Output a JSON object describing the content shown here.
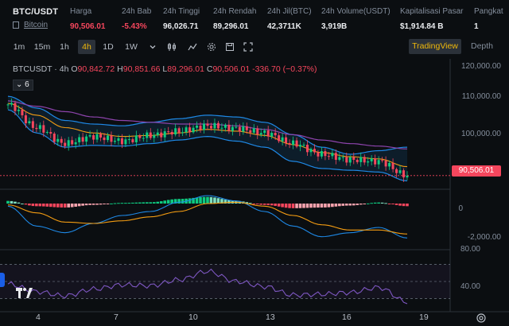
{
  "header": {
    "pair_symbol": "BTC/USDT",
    "pair_name": "Bitcoin",
    "stats": [
      {
        "label": "Harga",
        "value": "90,506.01",
        "color": "#f6465d"
      },
      {
        "label": "24h Bab",
        "value": "-5.43%",
        "color": "#f6465d"
      },
      {
        "label": "24h Tinggi",
        "value": "96,026.71",
        "color": "#eaecef"
      },
      {
        "label": "24h Rendah",
        "value": "89,296.01",
        "color": "#eaecef"
      },
      {
        "label": "24h Jil(BTC)",
        "value": "42,3711K",
        "color": "#eaecef"
      },
      {
        "label": "24h Volume(USDT)",
        "value": "3,919B",
        "color": "#eaecef"
      },
      {
        "label": "Kapitalisasi Pasar",
        "value": "$1,914.84 B",
        "color": "#eaecef"
      },
      {
        "label": "Pangkat",
        "value": "1",
        "color": "#eaecef"
      }
    ]
  },
  "toolbar": {
    "timeframes": [
      "1m",
      "15m",
      "1h",
      "4h",
      "1D",
      "1W"
    ],
    "active_timeframe": "4h",
    "dropdown_icon": "chevron-down-icon",
    "tool_icons": [
      "candle-type-icon",
      "indicator-icon",
      "settings-icon",
      "save-icon",
      "fullscreen-icon"
    ],
    "tradingview_label": "TradingView",
    "depth_label": "Depth"
  },
  "chart": {
    "symbol_interval": "BTCUSDT · 4h",
    "open_key": "O",
    "open": "90,842.72",
    "high_key": "H",
    "high": "90,851.66",
    "low_key": "L",
    "low": "89,296.01",
    "close_key": "C",
    "close": "90,506.01",
    "change": "-336.70 (−0.37%)",
    "indicator_count": "6",
    "last_price": "90,506.01",
    "price_axis": [
      "120,000.00",
      "110,000.00",
      "100,000.00"
    ],
    "macd_axis": [
      "0",
      "-2,000.00"
    ],
    "rsi_axis": [
      "80.00",
      "40.00"
    ],
    "date_axis": [
      "4",
      "7",
      "10",
      "13",
      "16",
      "19"
    ],
    "colors": {
      "up": "#0ecb81",
      "down": "#f6465d",
      "band": "#1e88e5",
      "ma_slow": "#8e44ad",
      "ma_fast": "#f39c12",
      "rsi": "#7e57c2"
    }
  },
  "chart_data": {
    "type": "candlestick",
    "symbol": "BTCUSDT",
    "interval": "4h",
    "x": [
      "4",
      "5",
      "6",
      "7",
      "8",
      "9",
      "10",
      "11",
      "12",
      "13",
      "14",
      "15",
      "16",
      "17",
      "18"
    ],
    "close": [
      110500,
      104000,
      99500,
      101500,
      100200,
      101800,
      103000,
      104500,
      103800,
      102500,
      99500,
      96500,
      95000,
      94500,
      90500
    ],
    "bb_upper": [
      112800,
      109500,
      106000,
      105000,
      104500,
      105500,
      106500,
      107500,
      107000,
      105500,
      102000,
      98500,
      96500,
      97500,
      98500
    ],
    "bb_lower": [
      109000,
      102500,
      98500,
      99000,
      98800,
      99500,
      100500,
      101500,
      100200,
      98500,
      94500,
      92500,
      92000,
      91500,
      89000
    ],
    "ma_slow": [
      111500,
      110000,
      108500,
      107000,
      106000,
      105500,
      105000,
      105000,
      104500,
      103500,
      102000,
      100500,
      99500,
      98800,
      98000
    ],
    "ma_fast": [
      110800,
      107500,
      104000,
      102500,
      101500,
      101800,
      102500,
      103500,
      103000,
      101800,
      99200,
      97000,
      95800,
      95200,
      93000
    ],
    "macd_hist": [
      200,
      -200,
      -300,
      -100,
      50,
      100,
      350,
      500,
      200,
      -100,
      -350,
      -300,
      -150,
      80,
      -200
    ],
    "macd": [
      -200,
      -1700,
      -2200,
      -1500,
      -900,
      -600,
      100,
      600,
      200,
      -600,
      -1700,
      -2500,
      -2200,
      -1800,
      -2600
    ],
    "signal": [
      -100,
      -700,
      -1400,
      -1500,
      -1300,
      -1000,
      -600,
      0,
      100,
      -200,
      -900,
      -1600,
      -2000,
      -2000,
      -2300
    ],
    "rsi": [
      57,
      48,
      43,
      51,
      56,
      55,
      62,
      72,
      60,
      54,
      44,
      45,
      47,
      53,
      36
    ],
    "y_price_range": [
      88000,
      122000
    ],
    "y_macd_range": [
      -3000,
      600
    ],
    "y_rsi_range": [
      30,
      90
    ]
  }
}
